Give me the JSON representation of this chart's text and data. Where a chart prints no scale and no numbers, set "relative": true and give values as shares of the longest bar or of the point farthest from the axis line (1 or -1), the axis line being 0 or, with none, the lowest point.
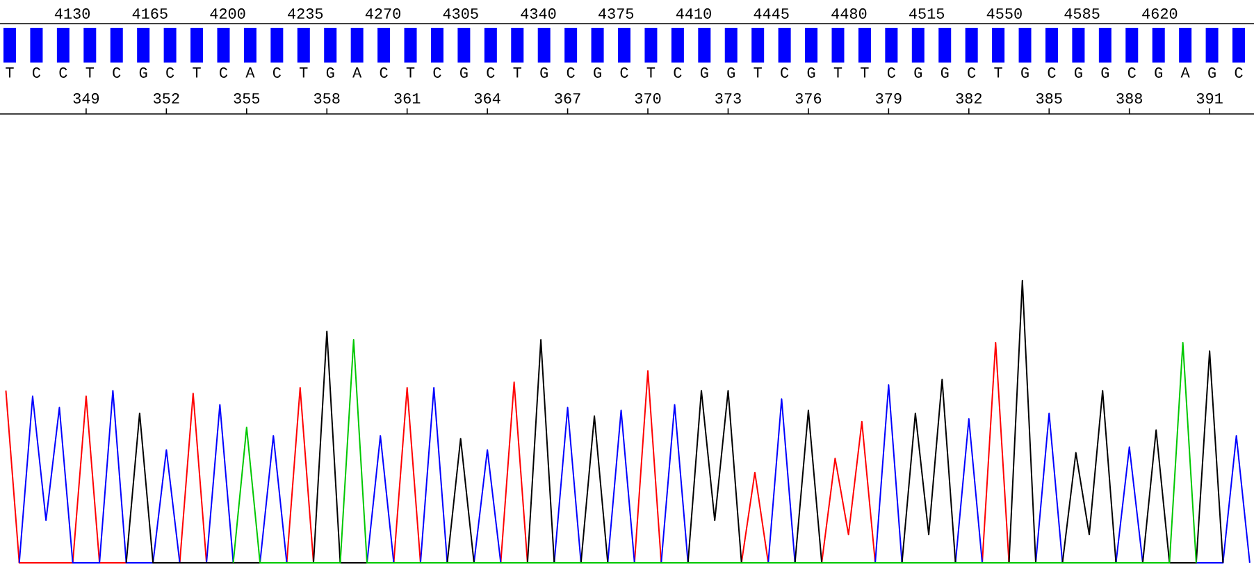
{
  "chart_data": [
    {
      "type": "bar",
      "relative": true,
      "color": "#0000ff",
      "categories": [
        "T",
        "C",
        "C",
        "T",
        "C",
        "G",
        "C",
        "T",
        "C",
        "A",
        "C",
        "T",
        "G",
        "A",
        "C",
        "T",
        "C",
        "G",
        "C",
        "T",
        "G",
        "C",
        "G",
        "C",
        "T",
        "C",
        "G",
        "G",
        "T",
        "C",
        "G",
        "T",
        "T",
        "C",
        "G",
        "G",
        "C",
        "T",
        "G",
        "C",
        "G",
        "G",
        "C",
        "G",
        "A",
        "G",
        "C"
      ],
      "values": [
        1,
        1,
        1,
        1,
        1,
        1,
        1,
        1,
        1,
        1,
        1,
        1,
        1,
        1,
        1,
        1,
        1,
        1,
        1,
        1,
        1,
        1,
        1,
        1,
        1,
        1,
        1,
        1,
        1,
        1,
        1,
        1,
        1,
        1,
        1,
        1,
        1,
        1,
        1,
        1,
        1,
        1,
        1,
        1,
        1,
        1,
        1
      ],
      "x2lim": [
        4097.4,
        4662.5
      ],
      "x2ticks": [
        4130,
        4165,
        4200,
        4235,
        4270,
        4305,
        4340,
        4375,
        4410,
        4445,
        4480,
        4515,
        4550,
        4585,
        4620
      ]
    },
    {
      "type": "line",
      "relative": true,
      "xlim": [
        345.78,
        392.66
      ],
      "xticks": [
        349,
        352,
        355,
        358,
        361,
        364,
        367,
        370,
        373,
        376,
        379,
        382,
        385,
        388,
        391
      ],
      "series": [
        {
          "color": "#ff0000",
          "x": [
            346,
            346.5,
            348.5,
            349,
            349.5,
            352.5,
            353,
            353.5,
            356.5,
            357,
            357.5,
            360.5,
            361,
            361.5,
            364.5,
            365,
            365.5,
            369.5,
            370,
            370.5,
            373.5,
            374,
            374.5,
            376.5,
            377,
            377.5,
            378,
            378.5,
            382.5,
            383,
            383.5
          ],
          "values": [
            0.61,
            0,
            0,
            0.59,
            0,
            0,
            0.6,
            0,
            0,
            0.62,
            0,
            0,
            0.62,
            0,
            0,
            0.64,
            0,
            0,
            0.68,
            0,
            0,
            0.32,
            0,
            0,
            0.37,
            0.1,
            0.5,
            0,
            0,
            0.78,
            0
          ]
        },
        {
          "color": "#0000ff",
          "x": [
            346.5,
            347,
            347.5,
            348,
            348.5,
            349.5,
            350,
            350.5,
            351.5,
            352,
            352.5,
            353.5,
            354,
            354.5,
            355.5,
            356,
            356.5,
            359.5,
            360,
            360.5,
            361.5,
            362,
            362.5,
            363.5,
            364,
            364.5,
            366.5,
            367,
            367.5,
            368.5,
            369,
            369.5,
            370.5,
            371,
            371.5,
            374.5,
            375,
            375.5,
            378.5,
            379,
            379.5,
            381.5,
            382,
            382.5,
            384.5,
            385,
            385.5,
            387.5,
            388,
            388.5,
            391.5,
            392,
            392.5
          ],
          "values": [
            0,
            0.59,
            0.15,
            0.55,
            0,
            0,
            0.61,
            0,
            0,
            0.4,
            0,
            0,
            0.56,
            0,
            0,
            0.45,
            0,
            0,
            0.45,
            0,
            0,
            0.62,
            0,
            0,
            0.4,
            0,
            0,
            0.55,
            0,
            0,
            0.54,
            0,
            0,
            0.56,
            0,
            0,
            0.58,
            0,
            0,
            0.63,
            0,
            0,
            0.51,
            0,
            0,
            0.53,
            0,
            0,
            0.41,
            0,
            0,
            0.45,
            0
          ]
        },
        {
          "color": "#000000",
          "x": [
            350.5,
            351,
            351.5,
            357.5,
            358,
            358.5,
            362.5,
            363,
            363.5,
            365.5,
            366,
            366.5,
            367.5,
            368,
            368.5,
            371.5,
            372,
            372.5,
            373,
            373.5,
            375.5,
            376,
            376.5,
            379.5,
            380,
            380.5,
            381,
            381.5,
            383.5,
            384,
            384.5,
            385.5,
            386,
            386.5,
            387,
            387.5,
            388.5,
            389,
            389.5,
            390.5,
            391,
            391.5
          ],
          "values": [
            0,
            0.53,
            0,
            0,
            0.82,
            0,
            0,
            0.44,
            0,
            0,
            0.79,
            0,
            0,
            0.52,
            0,
            0,
            0.61,
            0.15,
            0.61,
            0,
            0,
            0.54,
            0,
            0,
            0.53,
            0.1,
            0.65,
            0,
            0,
            1,
            0,
            0,
            0.39,
            0.1,
            0.61,
            0,
            0,
            0.47,
            0,
            0,
            0.75,
            0
          ]
        },
        {
          "color": "#00c800",
          "x": [
            354.5,
            355,
            355.5,
            358.5,
            359,
            359.5,
            389.5,
            390,
            390.5
          ],
          "values": [
            0,
            0.48,
            0,
            0,
            0.79,
            0,
            0,
            0.78,
            0
          ]
        }
      ]
    }
  ]
}
